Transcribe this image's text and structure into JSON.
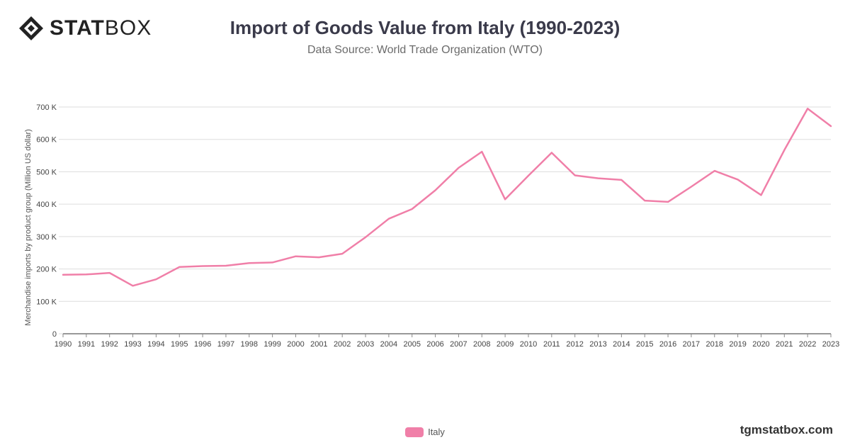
{
  "brand": {
    "bold": "STAT",
    "light": "BOX",
    "site": "tgmstatbox.com"
  },
  "colors": {
    "series": "#F07FA8",
    "grid": "#dddddd",
    "axis": "#333333"
  },
  "chart_data": {
    "type": "line",
    "title": "Import of Goods Value from Italy (1990-2023)",
    "subtitle": "Data Source: World Trade Organization (WTO)",
    "xlabel": "",
    "ylabel": "Merchandise imports by product group (Million US dollar)",
    "x": [
      "1990",
      "1991",
      "1992",
      "1993",
      "1994",
      "1995",
      "1996",
      "1997",
      "1998",
      "1999",
      "2000",
      "2001",
      "2002",
      "2003",
      "2004",
      "2005",
      "2006",
      "2007",
      "2008",
      "2009",
      "2010",
      "2011",
      "2012",
      "2013",
      "2014",
      "2015",
      "2016",
      "2017",
      "2018",
      "2019",
      "2020",
      "2021",
      "2022",
      "2023"
    ],
    "series": [
      {
        "name": "Italy",
        "values": [
          182000,
          183000,
          188000,
          148000,
          168000,
          206000,
          209000,
          210000,
          218000,
          220000,
          239000,
          236000,
          247000,
          298000,
          355000,
          385000,
          443000,
          512000,
          562000,
          415000,
          488000,
          559000,
          489000,
          480000,
          475000,
          411000,
          407000,
          454000,
          503000,
          476000,
          428000,
          567000,
          695000,
          641000
        ]
      }
    ],
    "yticks": [
      0,
      100000,
      200000,
      300000,
      400000,
      500000,
      600000,
      700000
    ],
    "ytick_labels": [
      "0",
      "100 K",
      "200 K",
      "300 K",
      "400 K",
      "500 K",
      "600 K",
      "700 K"
    ],
    "ylim": [
      0,
      700000
    ],
    "grid": true,
    "legend": "bottom-center"
  }
}
